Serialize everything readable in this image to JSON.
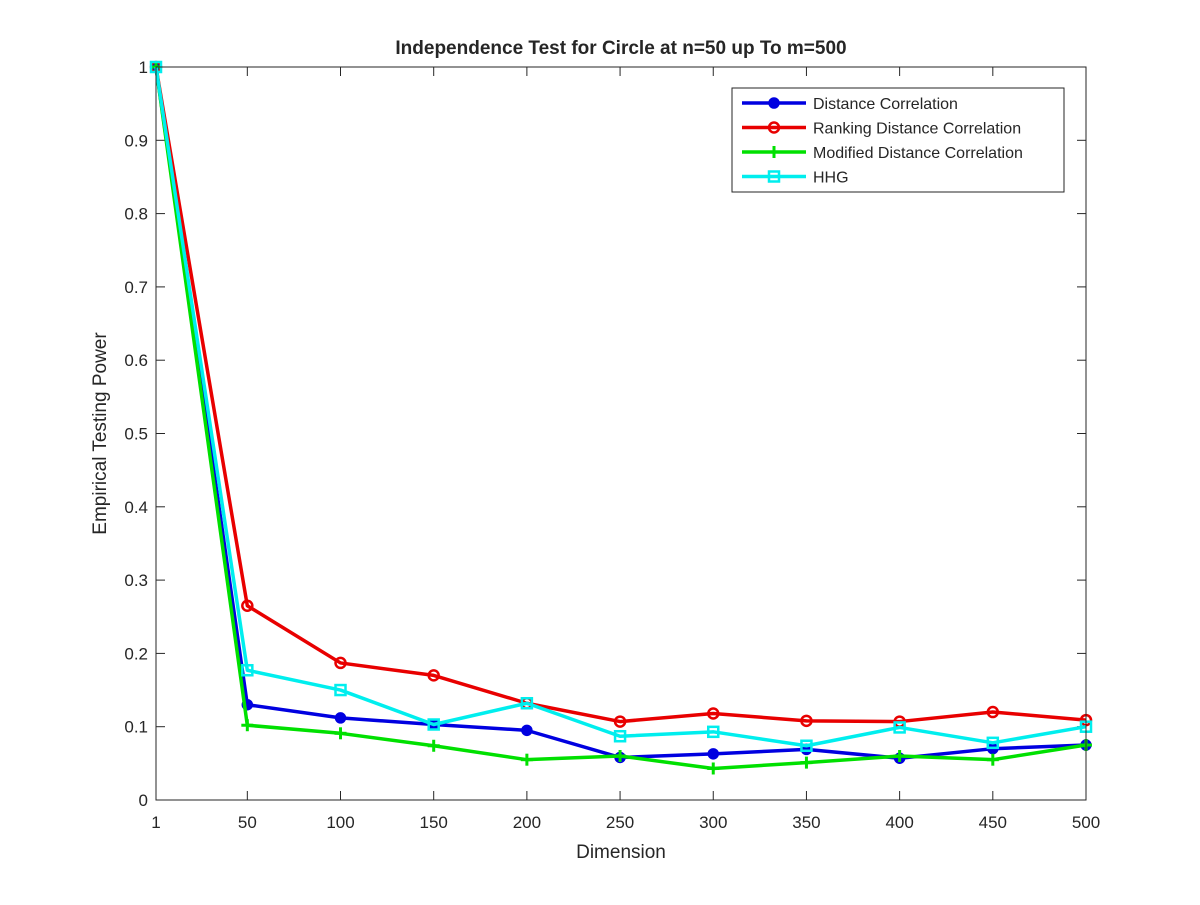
{
  "chart_data": {
    "type": "line",
    "title": "Independence Test for Circle at n=50 up To m=500",
    "xlabel": "Dimension",
    "ylabel": "Empirical Testing Power",
    "x": [
      1,
      50,
      100,
      150,
      200,
      250,
      300,
      350,
      400,
      450,
      500
    ],
    "xlim": [
      1,
      500
    ],
    "ylim": [
      0,
      1
    ],
    "x_ticks": [
      1,
      50,
      100,
      150,
      200,
      250,
      300,
      350,
      400,
      450,
      500
    ],
    "x_tick_labels": [
      "1",
      "50",
      "100",
      "150",
      "200",
      "250",
      "300",
      "350",
      "400",
      "450",
      "500"
    ],
    "y_ticks": [
      0,
      0.1,
      0.2,
      0.3,
      0.4,
      0.5,
      0.6,
      0.7,
      0.8,
      0.9,
      1
    ],
    "y_tick_labels": [
      "0",
      "0.1",
      "0.2",
      "0.3",
      "0.4",
      "0.5",
      "0.6",
      "0.7",
      "0.8",
      "0.9",
      "1"
    ],
    "grid": false,
    "legend_position": "top-right",
    "series": [
      {
        "name": "Distance Correlation",
        "color": "#0000e0",
        "marker": "filled-circle",
        "values": [
          1.0,
          0.13,
          0.112,
          0.103,
          0.095,
          0.058,
          0.063,
          0.069,
          0.057,
          0.07,
          0.075
        ]
      },
      {
        "name": "Ranking Distance Correlation",
        "color": "#e80000",
        "marker": "open-circle",
        "values": [
          1.0,
          0.265,
          0.187,
          0.17,
          0.132,
          0.107,
          0.118,
          0.108,
          0.107,
          0.12,
          0.109
        ]
      },
      {
        "name": "Modified Distance Correlation",
        "color": "#00e000",
        "marker": "plus",
        "values": [
          1.0,
          0.102,
          0.091,
          0.074,
          0.055,
          0.06,
          0.043,
          0.051,
          0.06,
          0.055,
          0.075
        ]
      },
      {
        "name": "HHG",
        "color": "#00eeee",
        "marker": "square",
        "values": [
          1.0,
          0.177,
          0.15,
          0.103,
          0.132,
          0.087,
          0.093,
          0.074,
          0.099,
          0.078,
          0.1
        ]
      }
    ]
  }
}
